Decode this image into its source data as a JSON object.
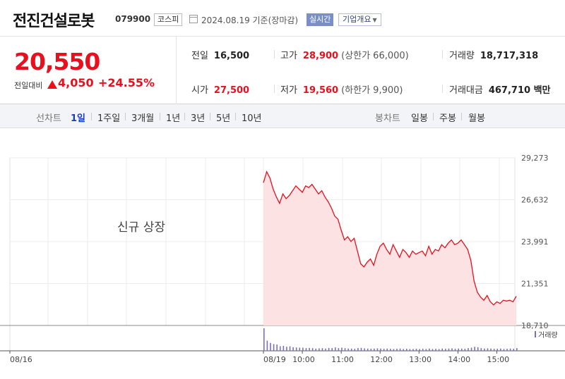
{
  "header": {
    "name": "전진건설로봇",
    "code": "079900",
    "market": "코스피",
    "date_label": "2024.08.19 기준(장마감)",
    "realtime": "실시간",
    "company_overview": "기업개요"
  },
  "quote": {
    "price": "20,550",
    "change_label": "전일대비",
    "change": "4,050",
    "change_pct": "+24.55%",
    "prev_close_label": "전일",
    "prev_close": "16,500",
    "high_label": "고가",
    "high": "28,900",
    "upper_limit": "(상한가 66,000)",
    "volume_label": "거래량",
    "volume": "18,717,318",
    "open_label": "시가",
    "open": "27,500",
    "low_label": "저가",
    "low": "19,560",
    "lower_limit": "(하한가 9,900)",
    "value_label": "거래대금",
    "value": "467,710 백만"
  },
  "period_bar": {
    "line_chart_label": "선차트",
    "periods": [
      "1일",
      "1주일",
      "3개월",
      "1년",
      "3년",
      "5년",
      "10년"
    ],
    "active_period": "1일",
    "candle_chart_label": "봉차트",
    "candle_periods": [
      "일봉",
      "주봉",
      "월봉"
    ]
  },
  "colors": {
    "up": "#e8101e",
    "line": "#e8101e",
    "area_fill": "#fde2e4",
    "volume_bar": "#7b6fc4",
    "active_tab": "#1a3cc3"
  },
  "chart_data": {
    "type": "area",
    "annotation": "신규 상장",
    "y_ticks": [
      "29,273",
      "26,632",
      "23,991",
      "21,351",
      "18,710"
    ],
    "ylim": [
      18710,
      29273
    ],
    "x_ticks": [
      "08/16",
      "08/19",
      "10:00",
      "11:00",
      "12:00",
      "13:00",
      "14:00",
      "15:00"
    ],
    "volume_legend": "거래량",
    "price_series": {
      "x": [
        "09:00",
        "09:05",
        "09:10",
        "09:15",
        "09:20",
        "09:25",
        "09:30",
        "09:35",
        "09:40",
        "09:45",
        "09:50",
        "09:55",
        "10:00",
        "10:05",
        "10:10",
        "10:15",
        "10:20",
        "10:25",
        "10:30",
        "10:35",
        "10:40",
        "10:45",
        "10:50",
        "10:55",
        "11:00",
        "11:05",
        "11:10",
        "11:15",
        "11:20",
        "11:25",
        "11:30",
        "11:35",
        "11:40",
        "11:45",
        "11:50",
        "11:55",
        "12:00",
        "12:05",
        "12:10",
        "12:15",
        "12:20",
        "12:25",
        "12:30",
        "12:35",
        "12:40",
        "12:45",
        "12:50",
        "12:55",
        "13:00",
        "13:05",
        "13:10",
        "13:15",
        "13:20",
        "13:25",
        "13:30",
        "13:35",
        "13:40",
        "13:45",
        "13:50",
        "13:55",
        "14:00",
        "14:05",
        "14:10",
        "14:15",
        "14:20",
        "14:25",
        "14:30",
        "14:35",
        "14:40",
        "14:45",
        "14:50",
        "14:55",
        "15:00",
        "15:05",
        "15:10",
        "15:15",
        "15:20",
        "15:25",
        "15:30"
      ],
      "values": [
        27700,
        28400,
        28000,
        27300,
        26800,
        26400,
        27000,
        26700,
        26900,
        27200,
        27500,
        27300,
        27100,
        27500,
        27400,
        27600,
        27300,
        27000,
        27200,
        26800,
        26500,
        26100,
        25600,
        25400,
        24700,
        24100,
        24300,
        24000,
        24200,
        23400,
        22600,
        22400,
        22700,
        22900,
        22500,
        23200,
        23700,
        23900,
        23500,
        23200,
        23800,
        23400,
        23000,
        23500,
        23300,
        23000,
        23400,
        23200,
        23300,
        23400,
        23100,
        23700,
        23200,
        23500,
        23400,
        23800,
        23600,
        23900,
        24100,
        23800,
        23900,
        24100,
        23800,
        23500,
        22800,
        21500,
        20800,
        20500,
        20300,
        20600,
        20200,
        20000,
        20200,
        20100,
        20300,
        20250,
        20300,
        20200,
        20550
      ]
    },
    "volume_series": {
      "note": "relative 5-minute volume (0-1), volume axis unlabeled",
      "values": [
        1.0,
        0.45,
        0.35,
        0.3,
        0.28,
        0.2,
        0.22,
        0.18,
        0.2,
        0.16,
        0.15,
        0.14,
        0.14,
        0.12,
        0.13,
        0.12,
        0.1,
        0.11,
        0.12,
        0.1,
        0.13,
        0.12,
        0.15,
        0.12,
        0.14,
        0.12,
        0.1,
        0.1,
        0.09,
        0.12,
        0.13,
        0.11,
        0.1,
        0.09,
        0.1,
        0.11,
        0.1,
        0.09,
        0.1,
        0.09,
        0.08,
        0.09,
        0.1,
        0.08,
        0.09,
        0.08,
        0.08,
        0.09,
        0.08,
        0.09,
        0.08,
        0.1,
        0.08,
        0.09,
        0.08,
        0.1,
        0.09,
        0.1,
        0.11,
        0.09,
        0.1,
        0.1,
        0.09,
        0.12,
        0.14,
        0.18,
        0.16,
        0.12,
        0.1,
        0.11,
        0.1,
        0.09,
        0.09,
        0.1,
        0.08,
        0.09,
        0.1,
        0.09,
        0.12
      ]
    }
  }
}
